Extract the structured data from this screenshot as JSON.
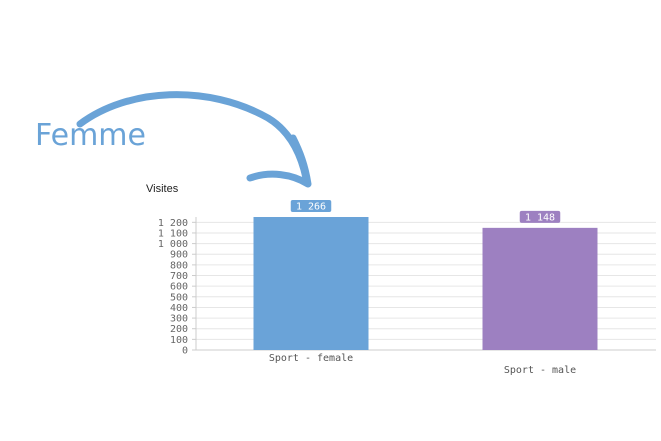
{
  "annotation": {
    "label": "Femme"
  },
  "colors": {
    "annotation": "#6aa3d7",
    "female": "#6aa3d8",
    "male": "#9d80c1",
    "grid": "#e6e6e6",
    "axis": "#cccccc"
  },
  "chart_data": {
    "type": "bar",
    "title": "",
    "ylabel": "Visites",
    "xlabel": "",
    "categories": [
      "Sport - female",
      "Sport - male"
    ],
    "values": [
      1266,
      1148
    ],
    "data_labels": [
      "1 266",
      "1 148"
    ],
    "ylim": [
      0,
      1250
    ],
    "yticks": [
      0,
      100,
      200,
      300,
      400,
      500,
      600,
      700,
      800,
      900,
      1000,
      1100,
      1200
    ],
    "ytick_labels": [
      "0",
      "100",
      "200",
      "300",
      "400",
      "500",
      "600",
      "700",
      "800",
      "900",
      "1 000",
      "1 100",
      "1 200"
    ],
    "grid": true,
    "legend": "none"
  }
}
